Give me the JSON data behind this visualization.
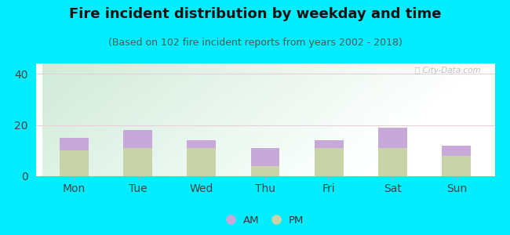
{
  "title": "Fire incident distribution by weekday and time",
  "subtitle": "(Based on 102 fire incident reports from years 2002 - 2018)",
  "days": [
    "Mon",
    "Tue",
    "Wed",
    "Thu",
    "Fri",
    "Sat",
    "Sun"
  ],
  "pm_values": [
    10,
    11,
    11,
    4,
    11,
    11,
    8
  ],
  "am_values": [
    5,
    7,
    3,
    7,
    3,
    8,
    4
  ],
  "am_color": "#c8a8d8",
  "pm_color": "#c8d4a8",
  "ylim": [
    0,
    44
  ],
  "yticks": [
    0,
    20,
    40
  ],
  "background_color": "#00eeff",
  "watermark": "Ⓜ City-Data.com",
  "grid_color": "#e8d0d8",
  "title_fontsize": 13,
  "subtitle_fontsize": 9,
  "tick_fontsize": 10
}
